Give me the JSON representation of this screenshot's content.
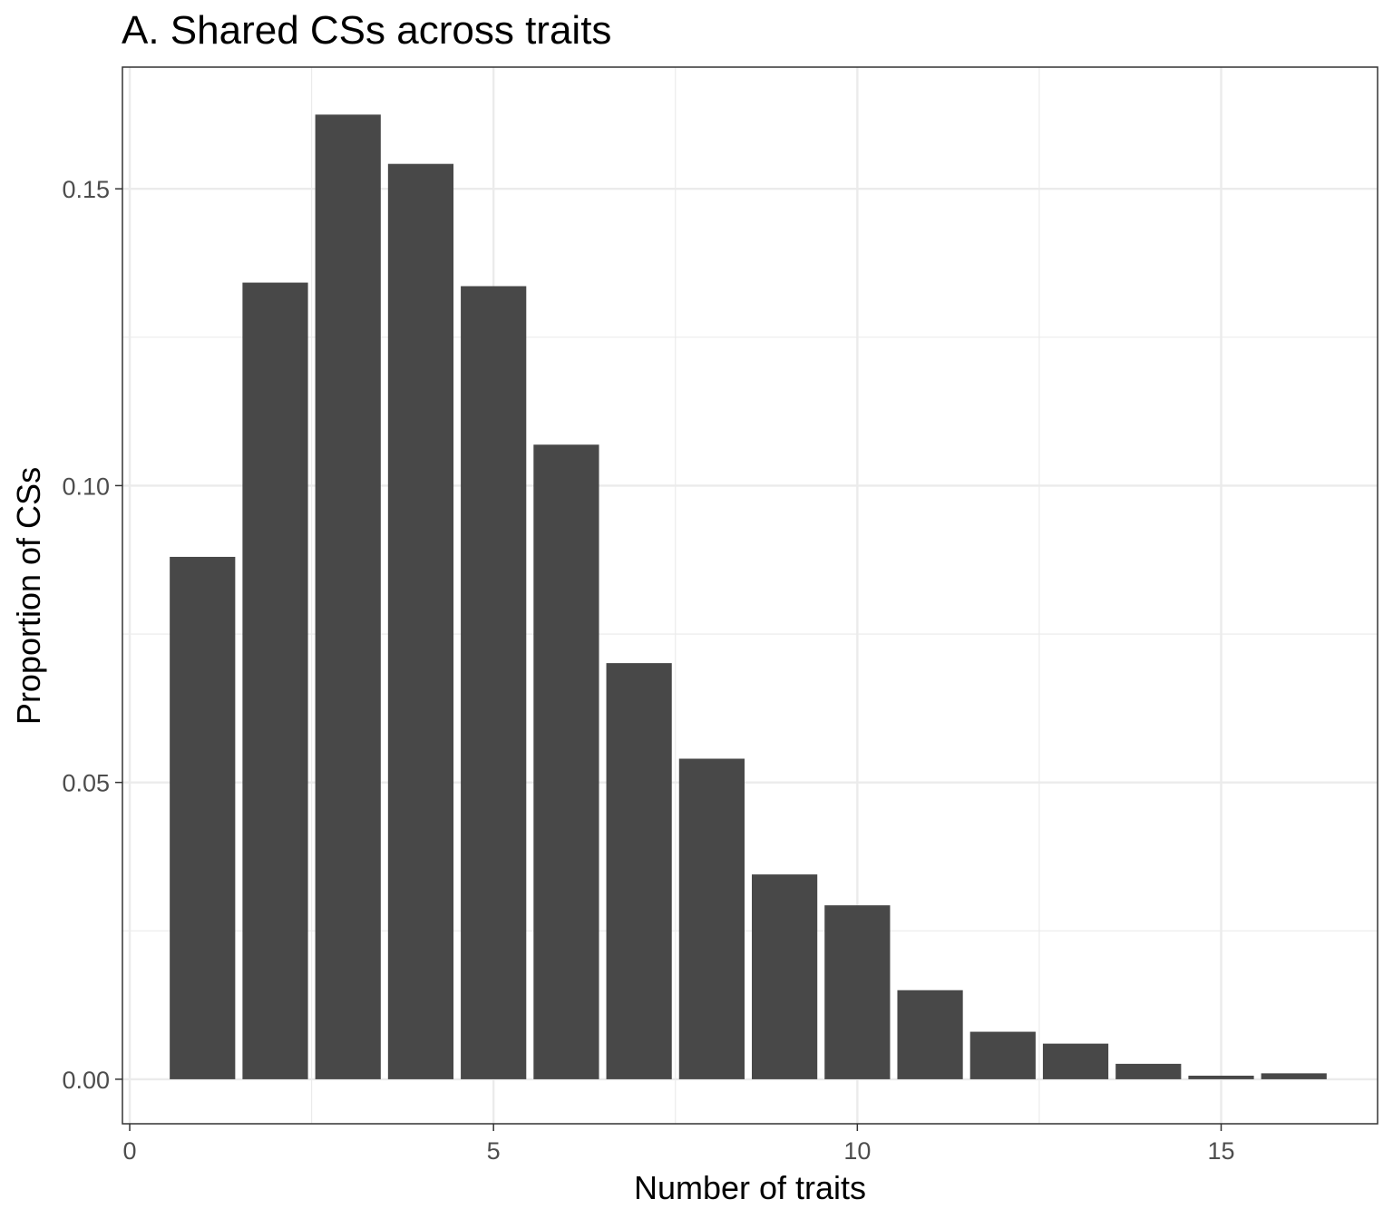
{
  "chart_data": {
    "type": "bar",
    "title": "A. Shared CSs across traits",
    "xlabel": "Number of traits",
    "ylabel": "Proportion of CSs",
    "x": [
      1,
      2,
      3,
      4,
      5,
      6,
      7,
      8,
      9,
      10,
      11,
      12,
      13,
      14,
      15,
      16
    ],
    "values": [
      0.088,
      0.1342,
      0.1625,
      0.1542,
      0.1336,
      0.1069,
      0.0701,
      0.054,
      0.0345,
      0.0293,
      0.015,
      0.008,
      0.006,
      0.0026,
      0.0006,
      0.001
    ],
    "xlim": [
      -0.1,
      17.15
    ],
    "ylim": [
      -0.0075,
      0.1705
    ],
    "xticks": [
      0,
      5,
      10,
      15
    ],
    "xtick_labels": [
      "0",
      "5",
      "10",
      "15"
    ],
    "yticks": [
      0,
      0.05,
      0.1,
      0.15
    ],
    "ytick_labels": [
      "0.00",
      "0.05",
      "0.10",
      "0.15"
    ],
    "grid": true,
    "bar_color": "#484848",
    "grid_color": "#ebebeb"
  }
}
